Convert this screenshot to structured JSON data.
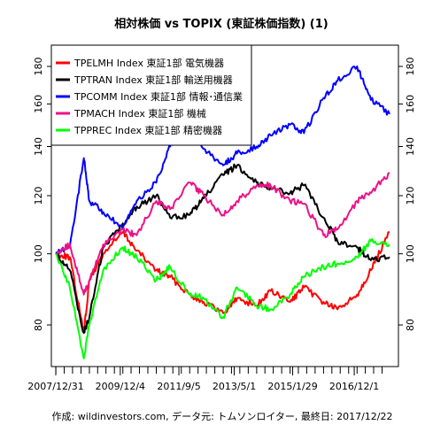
{
  "chart_data": {
    "type": "line",
    "title": "相対株価 vs TOPIX (東証株価指数) (1)",
    "caption": "作成: wildinvestors.com, データ元: トムソンロイター, 最終日: 2017/12/22",
    "xlabel": "",
    "ylabel": "",
    "log_y": true,
    "grid": false,
    "legend_position": "top-left",
    "x_tick_labels": [
      "2007/12/31",
      "2009/12/4",
      "2011/9/5",
      "2013/5/1",
      "2015/1/29",
      "2016/12/1"
    ],
    "y_ticks": [
      80,
      100,
      120,
      140,
      160,
      180
    ],
    "xlim": [
      "2007/12/31",
      "2017/12/22"
    ],
    "ylim": [
      70,
      190
    ],
    "series": [
      {
        "name": "TPELMH Index 東証1部 電気機器",
        "color": "#ff0000",
        "x": [
          "2008/01/01",
          "2008/06/01",
          "2008/11/01",
          "2009/01/01",
          "2009/06/01",
          "2010/01/01",
          "2010/06/01",
          "2011/01/01",
          "2011/06/01",
          "2012/01/01",
          "2012/06/01",
          "2013/01/01",
          "2013/06/01",
          "2014/01/01",
          "2014/06/01",
          "2015/01/01",
          "2015/06/01",
          "2016/01/01",
          "2016/06/01",
          "2017/01/01",
          "2017/06/01",
          "2017/12/22"
        ],
        "values": [
          100,
          99,
          78,
          92,
          100,
          107,
          101,
          95,
          93,
          88,
          86,
          83,
          87,
          85,
          89,
          86,
          90,
          86,
          84,
          88,
          95,
          107
        ]
      },
      {
        "name": "TPTRAN Index 東証1部 輸送用機器",
        "color": "#000000",
        "x": [
          "2008/01/01",
          "2008/06/01",
          "2008/11/01",
          "2009/01/01",
          "2009/06/01",
          "2010/01/01",
          "2010/06/01",
          "2011/01/01",
          "2011/06/01",
          "2012/01/01",
          "2012/06/01",
          "2013/01/01",
          "2013/06/01",
          "2014/01/01",
          "2014/06/01",
          "2015/01/01",
          "2015/06/01",
          "2016/01/01",
          "2016/06/01",
          "2017/01/01",
          "2017/06/01",
          "2017/12/22"
        ],
        "values": [
          100,
          95,
          78,
          82,
          102,
          110,
          116,
          120,
          112,
          113,
          119,
          128,
          132,
          125,
          123,
          121,
          124,
          112,
          104,
          102,
          98,
          99
        ]
      },
      {
        "name": "TPCOMM Index 東証1部 情報･通信業",
        "color": "#0000ff",
        "x": [
          "2008/01/01",
          "2008/06/01",
          "2008/11/01",
          "2009/01/01",
          "2009/06/01",
          "2010/01/01",
          "2010/06/01",
          "2011/01/01",
          "2011/06/01",
          "2012/01/01",
          "2012/06/01",
          "2013/01/01",
          "2013/06/01",
          "2014/01/01",
          "2014/06/01",
          "2015/01/01",
          "2015/06/01",
          "2016/01/01",
          "2016/06/01",
          "2017/01/01",
          "2017/06/01",
          "2017/12/22"
        ],
        "values": [
          100,
          102,
          135,
          118,
          114,
          108,
          118,
          125,
          140,
          150,
          139,
          132,
          137,
          140,
          145,
          150,
          146,
          163,
          172,
          180,
          162,
          155
        ]
      },
      {
        "name": "TPMACH Index 東証1部 機械",
        "color": "#ee1188",
        "x": [
          "2008/01/01",
          "2008/06/01",
          "2008/11/01",
          "2009/01/01",
          "2009/06/01",
          "2010/01/01",
          "2010/06/01",
          "2011/01/01",
          "2011/06/01",
          "2012/01/01",
          "2012/06/01",
          "2013/01/01",
          "2013/06/01",
          "2014/01/01",
          "2014/06/01",
          "2015/01/01",
          "2015/06/01",
          "2016/01/01",
          "2016/06/01",
          "2017/01/01",
          "2017/06/01",
          "2017/12/22"
        ],
        "values": [
          100,
          103,
          88,
          92,
          103,
          108,
          106,
          118,
          115,
          125,
          120,
          113,
          118,
          124,
          124,
          118,
          117,
          106,
          108,
          118,
          121,
          129
        ]
      },
      {
        "name": "TPPREC Index 東証1部 精密機器",
        "color": "#00ff00",
        "x": [
          "2008/01/01",
          "2008/06/01",
          "2008/11/01",
          "2009/01/01",
          "2009/06/01",
          "2010/01/01",
          "2010/06/01",
          "2011/01/01",
          "2011/06/01",
          "2012/01/01",
          "2012/06/01",
          "2013/01/01",
          "2013/06/01",
          "2014/01/01",
          "2014/06/01",
          "2015/01/01",
          "2015/06/01",
          "2016/01/01",
          "2016/06/01",
          "2017/01/01",
          "2017/06/01",
          "2017/12/22"
        ],
        "values": [
          100,
          90,
          72,
          80,
          95,
          102,
          99,
          92,
          96,
          88,
          87,
          82,
          90,
          85,
          84,
          88,
          93,
          96,
          97,
          99,
          104,
          103
        ]
      }
    ]
  }
}
